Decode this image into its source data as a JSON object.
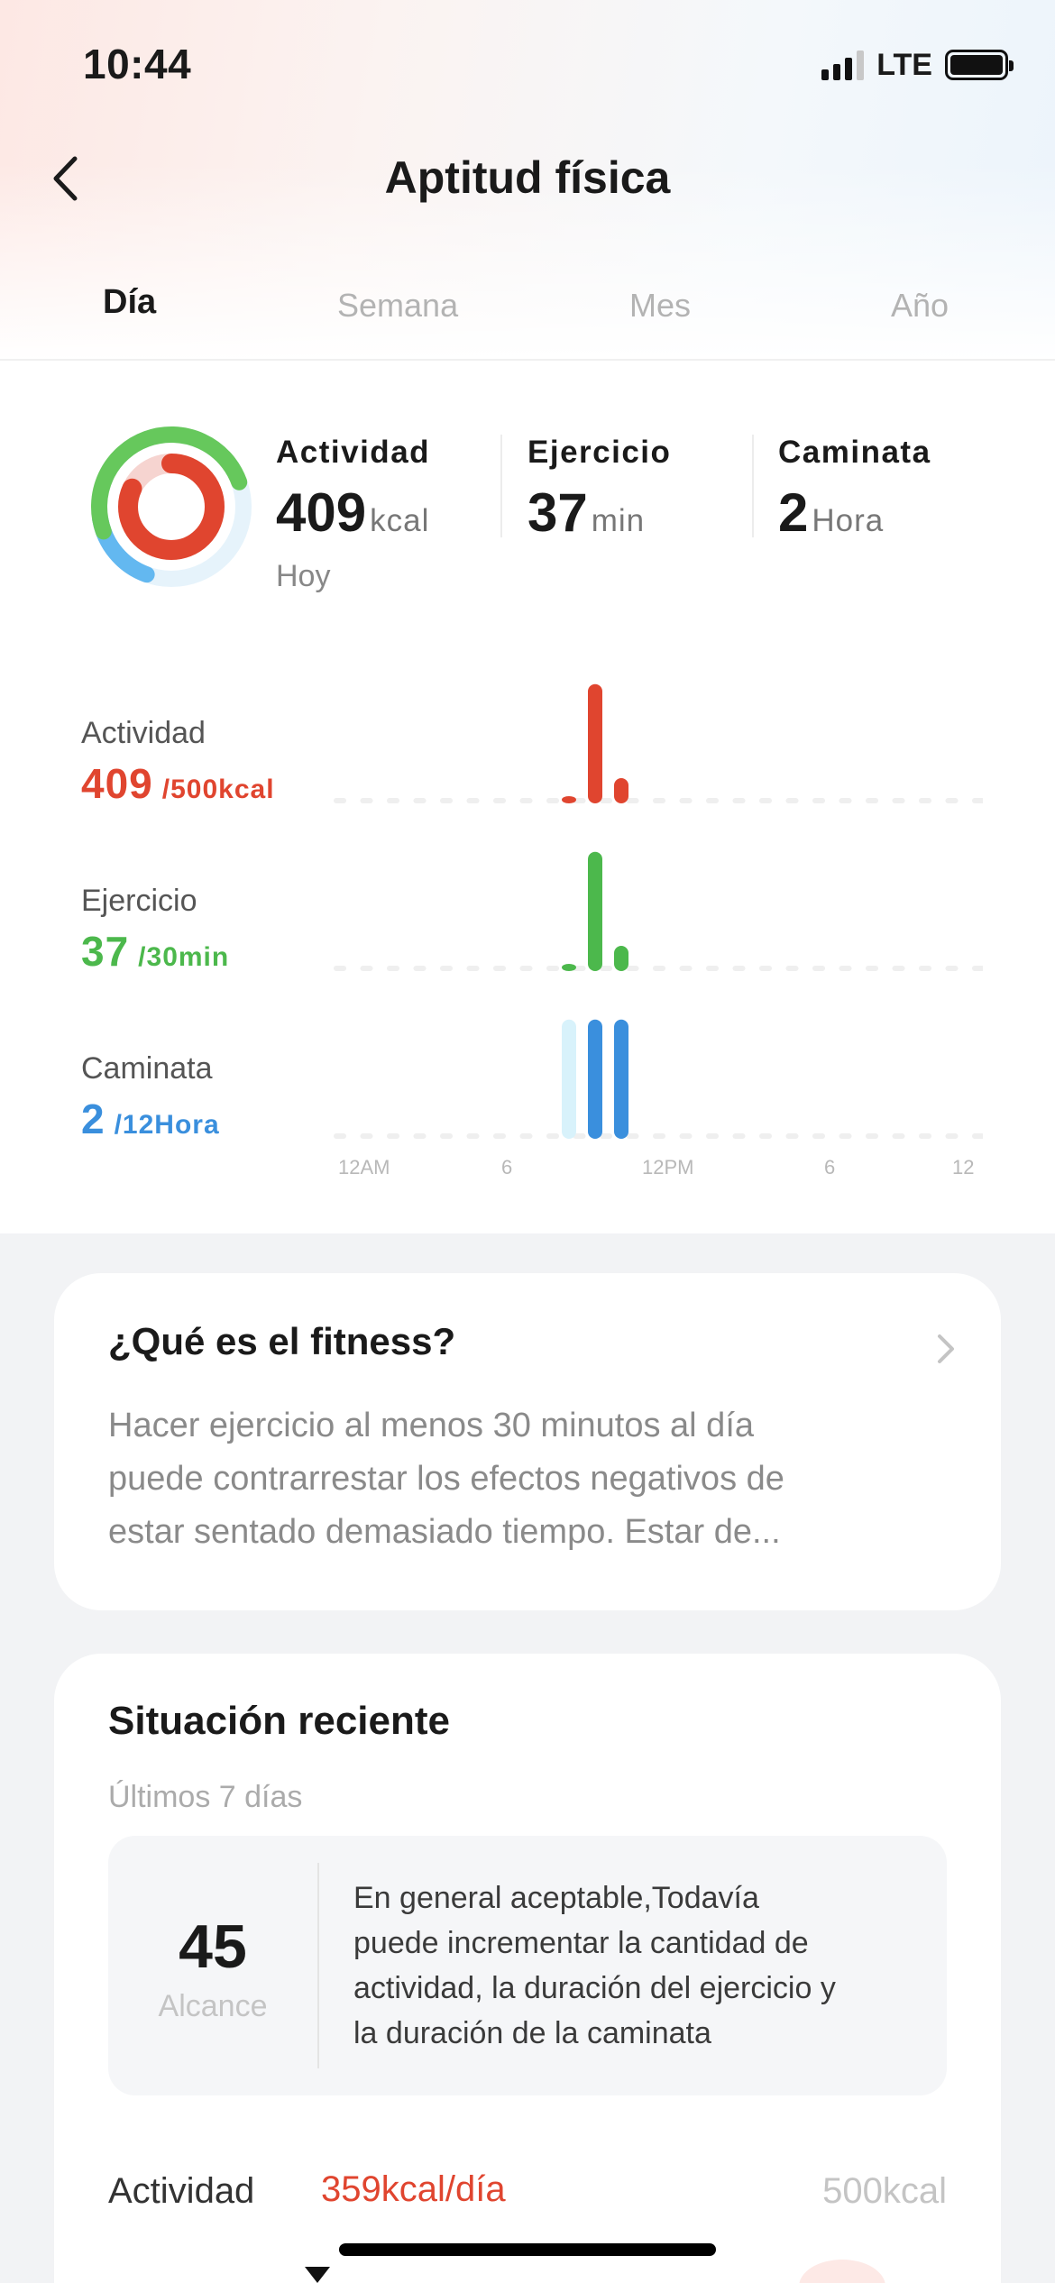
{
  "status_bar": {
    "time": "10:44",
    "network": "LTE"
  },
  "header": {
    "title": "Aptitud física"
  },
  "tabs": [
    {
      "label": "Día",
      "active": true
    },
    {
      "label": "Semana",
      "active": false
    },
    {
      "label": "Mes",
      "active": false
    },
    {
      "label": "Año",
      "active": false
    }
  ],
  "summary": {
    "activity": {
      "label": "Actividad",
      "value": "409",
      "unit": "kcal",
      "color": "#e0452f"
    },
    "exercise": {
      "label": "Ejercicio",
      "value": "37",
      "unit": "min",
      "color": "#4cb84c"
    },
    "walk": {
      "label": "Caminata",
      "value": "2",
      "unit": "Hora",
      "color": "#3a8fdd"
    },
    "today": "Hoy"
  },
  "ring": {
    "activity_fraction": 0.818,
    "exercise_fraction": 1.0,
    "walk_fraction": 0.1667
  },
  "charts": {
    "activity": {
      "label": "Actividad",
      "value": "409",
      "goal": "/500kcal"
    },
    "exercise": {
      "label": "Ejercicio",
      "value": "37",
      "goal": "/30min"
    },
    "walk": {
      "label": "Caminata",
      "value": "2",
      "goal": "/12Hora"
    }
  },
  "chart_data": [
    {
      "type": "bar",
      "title": "Actividad",
      "x": [
        "8AM",
        "9AM",
        "10AM"
      ],
      "values": [
        5,
        85,
        18
      ],
      "ylim": [
        0,
        90
      ],
      "color": "#e0452f"
    },
    {
      "type": "bar",
      "title": "Ejercicio",
      "x": [
        "8AM",
        "9AM",
        "10AM"
      ],
      "values": [
        5,
        85,
        18
      ],
      "ylim": [
        0,
        90
      ],
      "color": "#4cb84c"
    },
    {
      "type": "bar",
      "title": "Caminata",
      "x": [
        "8AM",
        "9AM",
        "10AM"
      ],
      "values": [
        85,
        85,
        85
      ],
      "ylim": [
        0,
        90
      ],
      "colors": [
        "#d8f2fb",
        "#3a8fdd",
        "#3a8fdd"
      ]
    }
  ],
  "x_axis_ticks": [
    "12AM",
    "6",
    "12PM",
    "6",
    "12"
  ],
  "info_card": {
    "title": "¿Qué es el fitness?",
    "lines": [
      "Hacer ejercicio al menos 30 minutos al día",
      "puede contrarrestar los efectos negativos de",
      "estar sentado demasiado tiempo. Estar de..."
    ]
  },
  "recent_card": {
    "title": "Situación reciente",
    "subtitle": "Últimos 7 días",
    "score": "45",
    "score_label": "Alcance",
    "description": [
      "En general aceptable,Todavía",
      "puede incrementar la cantidad de",
      "actividad, la duración del ejercicio y",
      "la duración de la caminata"
    ],
    "activity_row": {
      "label": "Actividad",
      "value": "359kcal/día",
      "goal": "500kcal"
    }
  },
  "colors": {
    "activity": "#e0452f",
    "exercise": "#4cb84c",
    "walk": "#3a8fdd"
  }
}
